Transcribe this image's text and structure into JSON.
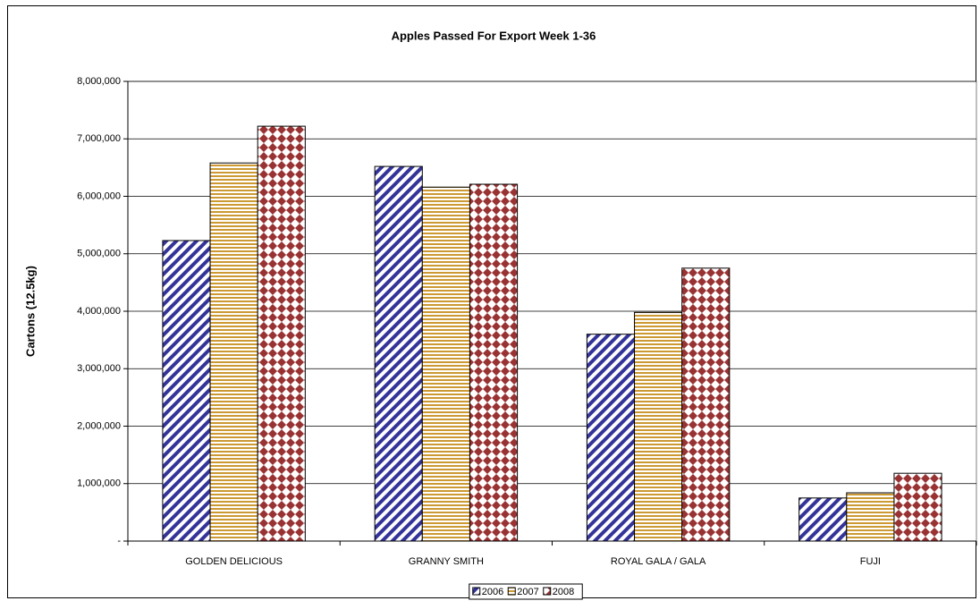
{
  "chart_data": {
    "type": "bar",
    "title": "Apples Passed For Export Week 1-36",
    "y_axis_label": "Cartons (12.5kg)",
    "categories": [
      "GOLDEN DELICIOUS",
      "GRANNY SMITH",
      "ROYAL GALA / GALA",
      "FUJI"
    ],
    "series": [
      {
        "name": "2006",
        "color": "#333399",
        "pattern": "diagonal",
        "values": [
          5230000,
          6520000,
          3600000,
          750000
        ]
      },
      {
        "name": "2007",
        "color": "#cc9933",
        "pattern": "horizontal",
        "values": [
          6580000,
          6160000,
          3980000,
          840000
        ]
      },
      {
        "name": "2008",
        "color": "#993333",
        "pattern": "checker",
        "values": [
          7220000,
          6210000,
          4750000,
          1180000
        ]
      }
    ],
    "ylim": [
      0,
      8000000
    ],
    "yticks": [
      {
        "value": 0,
        "label": "-"
      },
      {
        "value": 1000000,
        "label": "1,000,000"
      },
      {
        "value": 2000000,
        "label": "2,000,000"
      },
      {
        "value": 3000000,
        "label": "3,000,000"
      },
      {
        "value": 4000000,
        "label": "4,000,000"
      },
      {
        "value": 5000000,
        "label": "5,000,000"
      },
      {
        "value": 6000000,
        "label": "6,000,000"
      },
      {
        "value": 7000000,
        "label": "7,000,000"
      },
      {
        "value": 8000000,
        "label": "8,000,000"
      }
    ],
    "grid": true,
    "legend": "bottom"
  }
}
